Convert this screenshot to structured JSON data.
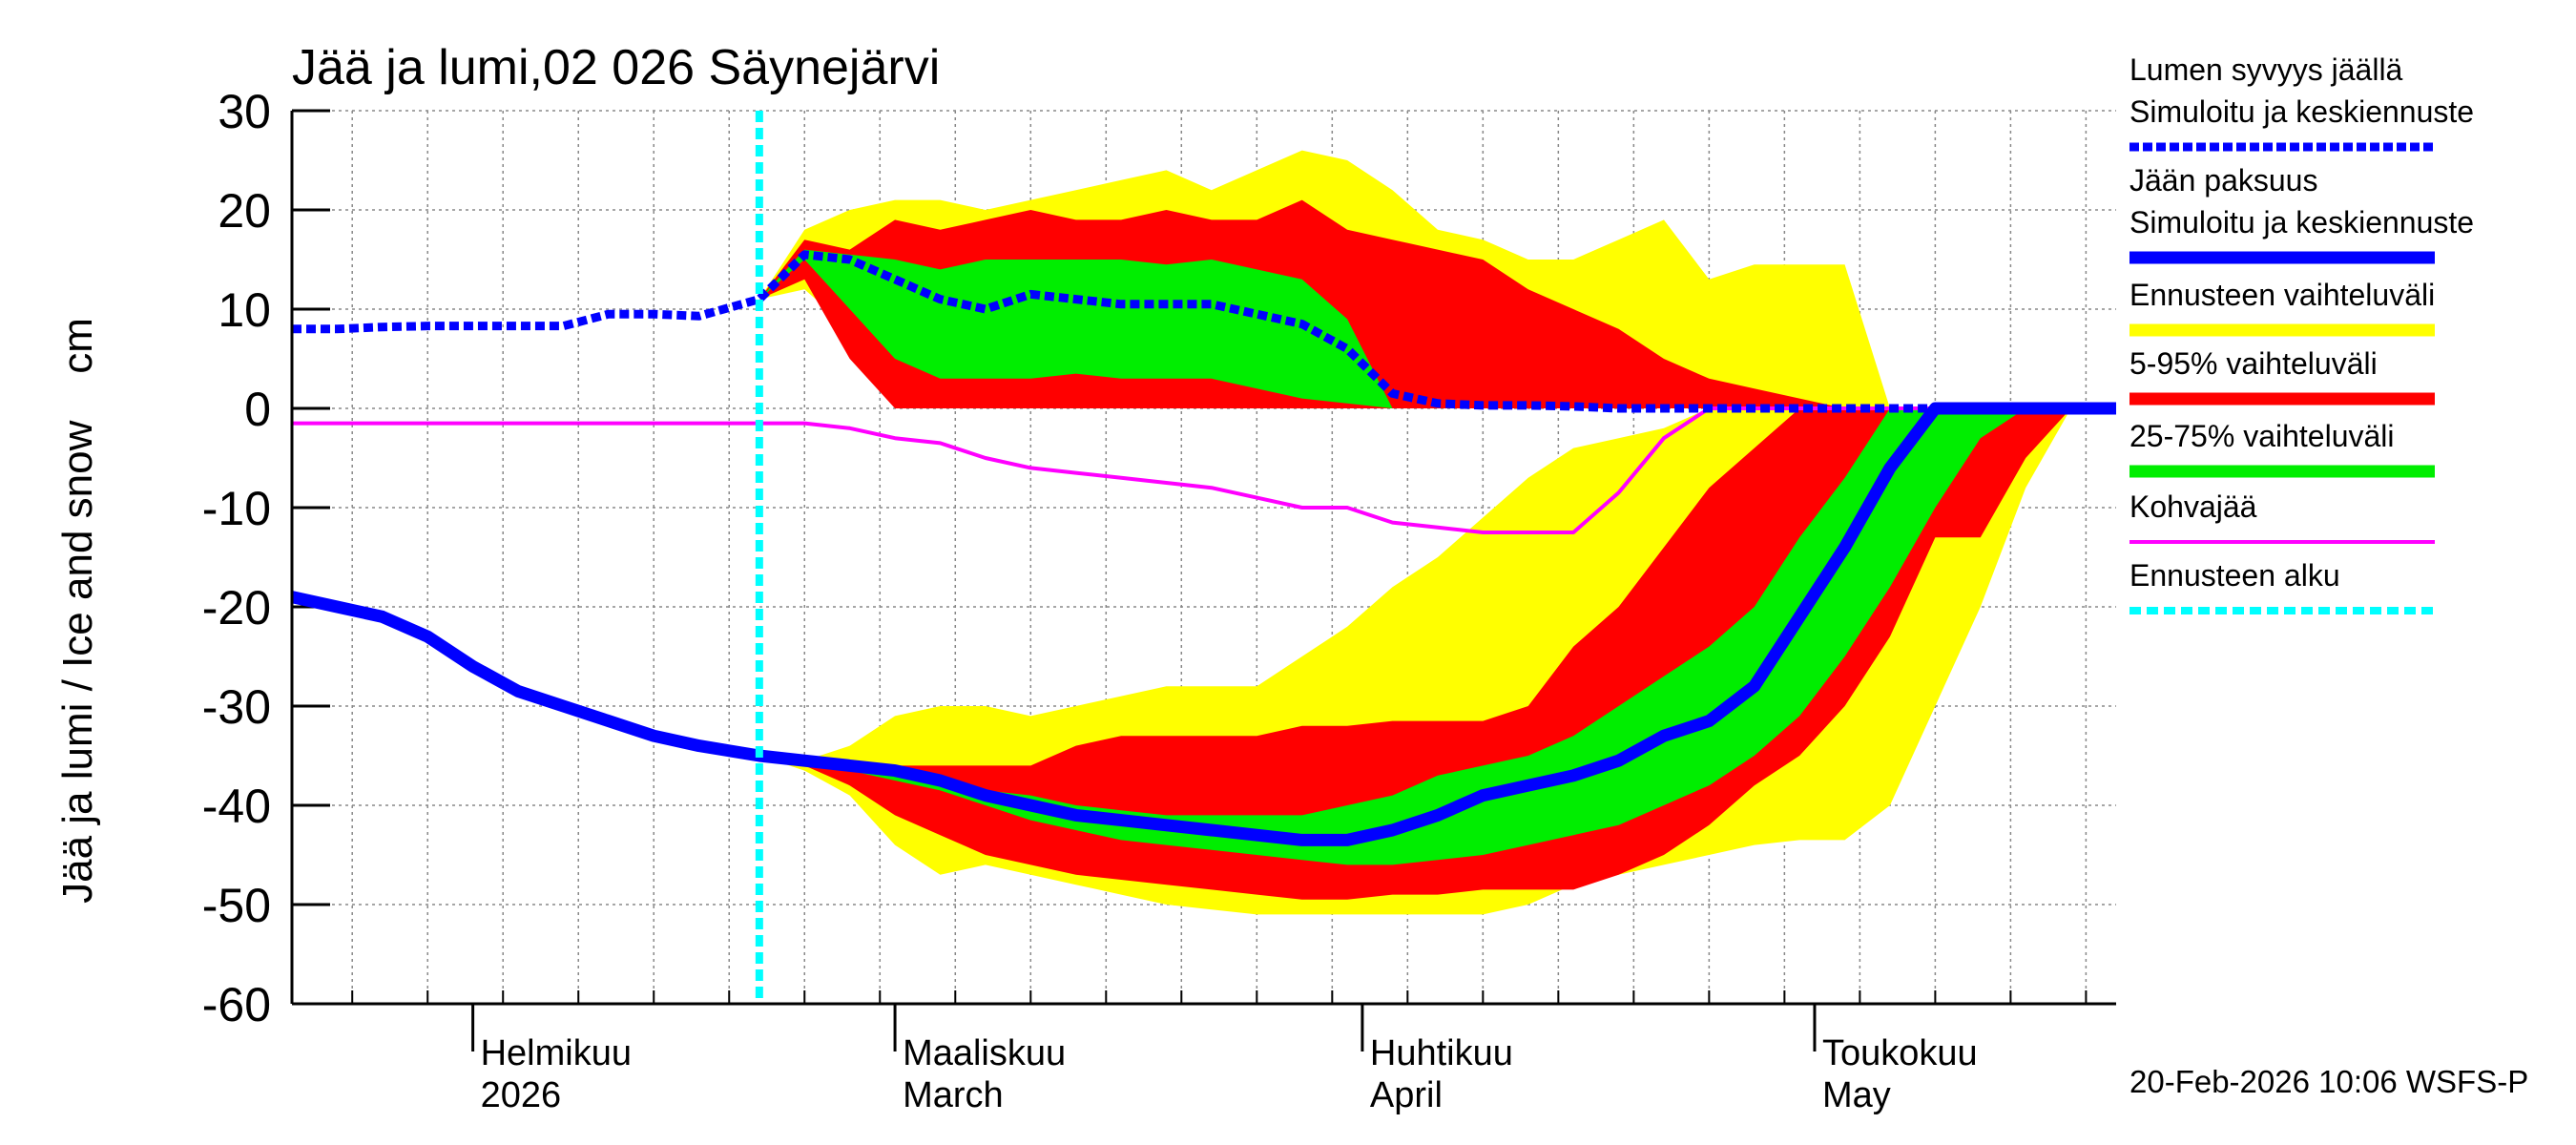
{
  "chart_data": {
    "type": "line",
    "title": "Jää ja lumi,02 026 Säynejärvi",
    "y_label": "Jää ja lumi / Ice and snow    cm",
    "timestamp": "20-Feb-2026 10:06 WSFS-P",
    "xlim": [
      0,
      121
    ],
    "xticks": [
      {
        "value": 12,
        "label": "Helmikuu"
      },
      {
        "value": 40,
        "label": "Maaliskuu"
      },
      {
        "value": 71,
        "label": "Huhtikuu"
      },
      {
        "value": 101,
        "label": "Toukokuu"
      }
    ],
    "xtick_sublabels": [
      "2026",
      "March",
      "April",
      "May"
    ],
    "xgrid": [
      4,
      9,
      14,
      19,
      24,
      29,
      34,
      39,
      44,
      49,
      54,
      59,
      64,
      69,
      74,
      79,
      84,
      89,
      94,
      99,
      104,
      109,
      114,
      119
    ],
    "ylim": [
      -60,
      30
    ],
    "yticks": [
      -60,
      -50,
      -40,
      -30,
      -20,
      -10,
      0,
      10,
      20,
      30
    ],
    "grid": true,
    "x": [
      0,
      3,
      6,
      9,
      12,
      15,
      18,
      21,
      24,
      27,
      31,
      34,
      37,
      40,
      43,
      46,
      49,
      52,
      55,
      58,
      61,
      64,
      67,
      70,
      73,
      76,
      79,
      82,
      85,
      88,
      91,
      94,
      97,
      100,
      103,
      106,
      109,
      112,
      115,
      118,
      121
    ],
    "series": [
      {
        "name": "Lumen syvyys jäällä",
        "method": "Simuloitu ja keskiennuste",
        "color": "#0000ff",
        "dashed": true,
        "values": [
          8,
          8,
          8.2,
          8.3,
          8.3,
          8.3,
          8.3,
          9.5,
          9.5,
          9.3,
          11,
          15.5,
          15,
          13,
          11,
          10,
          11.5,
          11,
          10.5,
          10.5,
          10.5,
          9.5,
          8.5,
          6,
          1.5,
          0.5,
          0.3,
          0.3,
          0.2,
          0,
          0,
          0,
          0,
          0,
          0,
          0,
          0,
          0,
          0,
          0,
          0
        ]
      },
      {
        "name": "Jään paksuus",
        "method": "Simuloitu ja keskiennuste",
        "color": "#0000ff",
        "dashed": false,
        "values": [
          -19,
          -20,
          -21,
          -23,
          -26,
          -28.5,
          -30,
          -31.5,
          -33,
          -34,
          -35,
          -35.5,
          -36,
          -36.5,
          -37.5,
          -39,
          -40,
          -41,
          -41.5,
          -42,
          -42.5,
          -43,
          -43.5,
          -43.5,
          -42.5,
          -41,
          -39,
          -38,
          -37,
          -35.5,
          -33,
          -31.5,
          -28,
          -21,
          -14,
          -6,
          0,
          0,
          0,
          0,
          0
        ]
      },
      {
        "name": "Kohvajää",
        "color": "#ff00ff",
        "dashed": false,
        "values": [
          -1.5,
          -1.5,
          -1.5,
          -1.5,
          -1.5,
          -1.5,
          -1.5,
          -1.5,
          -1.5,
          -1.5,
          -1.5,
          -1.5,
          -2,
          -3,
          -3.5,
          -5,
          -6,
          -6.5,
          -7,
          -7.5,
          -8,
          -9,
          -10,
          -10,
          -11.5,
          -12,
          -12.5,
          -12.5,
          -12.5,
          -8.5,
          -3,
          0,
          0,
          0,
          0,
          0,
          0,
          0,
          0,
          0,
          0
        ]
      }
    ],
    "band_x": [
      31,
      34,
      37,
      40,
      43,
      46,
      49,
      52,
      55,
      58,
      61,
      64,
      67,
      70,
      73,
      76,
      79,
      82,
      85,
      88,
      91,
      94,
      97,
      100,
      103,
      106,
      109,
      112,
      115,
      118,
      121
    ],
    "bands": [
      {
        "name": "Ennusteen vaihteluväli",
        "color": "#ffff00",
        "snow": {
          "lower": [
            11,
            12,
            8,
            0,
            0,
            0,
            0,
            0,
            0,
            0,
            0,
            0,
            0,
            0,
            0,
            0,
            0,
            0,
            0,
            0,
            0,
            0,
            0,
            0,
            0,
            0,
            0,
            0,
            0,
            0,
            0
          ],
          "upper": [
            11,
            18,
            20,
            21,
            21,
            20,
            21,
            22,
            23,
            24,
            22,
            24,
            26,
            25,
            22,
            18,
            17,
            15,
            15,
            17,
            19,
            13,
            14.5,
            14.5,
            14.5,
            0,
            0,
            0,
            0,
            0,
            0
          ]
        },
        "ice": {
          "lower": [
            -35,
            -36.5,
            -39,
            -44,
            -47,
            -46,
            -47,
            -48,
            -49,
            -50,
            -50.5,
            -51,
            -51,
            -51,
            -51,
            -51,
            -51,
            -50,
            -48,
            -47,
            -46,
            -45,
            -44,
            -43.5,
            -43.5,
            -40,
            -30,
            -20,
            -8,
            0,
            0
          ],
          "upper": [
            -35,
            -35.5,
            -34,
            -31,
            -30,
            -30,
            -31,
            -30,
            -29,
            -28,
            -28,
            -28,
            -25,
            -22,
            -18,
            -15,
            -11,
            -7,
            -4,
            -3,
            -2,
            0,
            0,
            0,
            0,
            0,
            0,
            0,
            0,
            0,
            0
          ]
        }
      },
      {
        "name": "5-95% vaihteluväli",
        "color": "#ff0000",
        "snow": {
          "lower": [
            11,
            13,
            5,
            0,
            0,
            0,
            0,
            0,
            0,
            0,
            0,
            0,
            0,
            0,
            0,
            0,
            0,
            0,
            0,
            0,
            0,
            0,
            0,
            0,
            0,
            0,
            0,
            0,
            0,
            0,
            0
          ],
          "upper": [
            11,
            17,
            16,
            19,
            18,
            19,
            20,
            19,
            19,
            20,
            19,
            19,
            21,
            18,
            17,
            16,
            15,
            12,
            10,
            8,
            5,
            3,
            2,
            1,
            0,
            0,
            0,
            0,
            0,
            0,
            0
          ]
        },
        "ice": {
          "lower": [
            -35,
            -36,
            -38,
            -41,
            -43,
            -45,
            -46,
            -47,
            -47.5,
            -48,
            -48.5,
            -49,
            -49.5,
            -49.5,
            -49,
            -49,
            -48.5,
            -48.5,
            -48.5,
            -47,
            -45,
            -42,
            -38,
            -35,
            -30,
            -23,
            -13,
            -13,
            -5,
            0,
            0
          ],
          "upper": [
            -35,
            -35.5,
            -36,
            -36,
            -36,
            -36,
            -36,
            -34,
            -33,
            -33,
            -33,
            -33,
            -32,
            -32,
            -31.5,
            -31.5,
            -31.5,
            -30,
            -24,
            -20,
            -14,
            -8,
            -4,
            0,
            0,
            0,
            0,
            0,
            0,
            0,
            0
          ]
        }
      },
      {
        "name": "25-75% vaihteluväli",
        "color": "#00ee00",
        "snow": {
          "lower": [
            11,
            15,
            10,
            5,
            3,
            3,
            3,
            3.5,
            3,
            3,
            3,
            2,
            1,
            0.5,
            0,
            0,
            0,
            0,
            0,
            0,
            0,
            0,
            0,
            0,
            0,
            0,
            0,
            0,
            0,
            0,
            0
          ],
          "upper": [
            11,
            16,
            15.5,
            15,
            14,
            15,
            15,
            15,
            15,
            14.5,
            15,
            14,
            13,
            9,
            0,
            0,
            0,
            0,
            0,
            0,
            0,
            0,
            0,
            0,
            0,
            0,
            0,
            0,
            0,
            0,
            0
          ]
        },
        "ice": {
          "lower": [
            -35,
            -35.5,
            -36.5,
            -37.5,
            -38.5,
            -40,
            -41.5,
            -42.5,
            -43.5,
            -44,
            -44.5,
            -45,
            -45.5,
            -46,
            -46,
            -45.5,
            -45,
            -44,
            -43,
            -42,
            -40,
            -38,
            -35,
            -31,
            -25,
            -18,
            -10,
            -3,
            0,
            0,
            0
          ],
          "upper": [
            -35,
            -35.5,
            -36,
            -36.5,
            -37,
            -38.5,
            -39,
            -40,
            -40.5,
            -41,
            -41,
            -41,
            -41,
            -40,
            -39,
            -37,
            -36,
            -35,
            -33,
            -30,
            -27,
            -24,
            -20,
            -13,
            -7,
            0,
            0,
            0,
            0,
            0,
            0
          ]
        }
      }
    ],
    "forecast_start": {
      "name": "Ennusteen alku",
      "x": 31,
      "color": "#00ffff"
    }
  }
}
